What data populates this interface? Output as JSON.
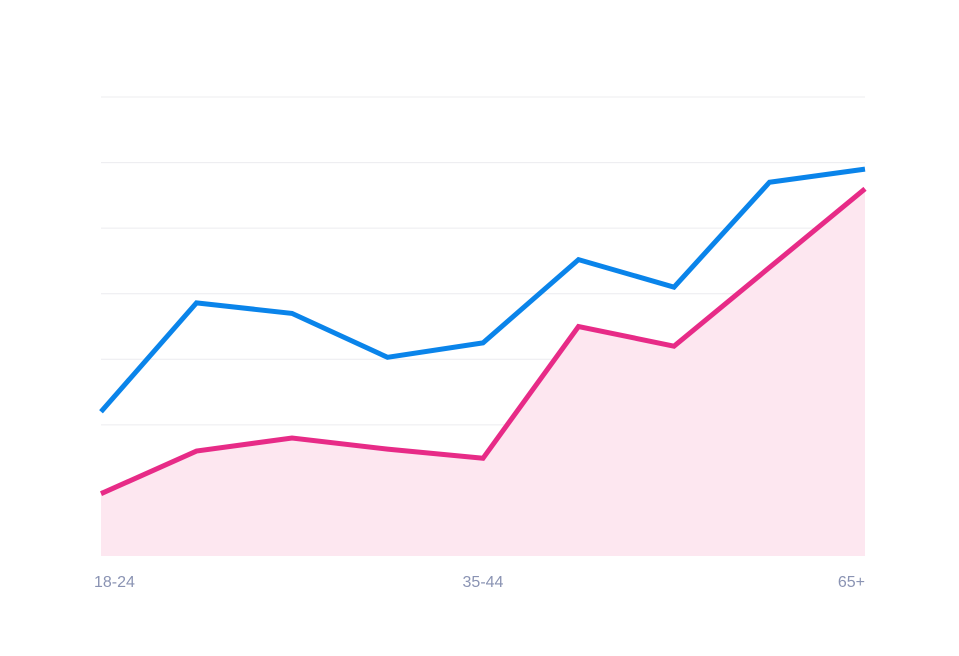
{
  "chart_data": {
    "type": "line",
    "x": [
      1,
      2,
      3,
      4,
      5,
      6,
      7,
      8,
      9
    ],
    "tick_labels": [
      {
        "x": 1,
        "label": "18-24"
      },
      {
        "x": 5,
        "label": "35-44"
      },
      {
        "x": 9,
        "label": "65+"
      }
    ],
    "series": [
      {
        "values": [
          22.0,
          38.6,
          37.0,
          30.3,
          32.5,
          45.2,
          41.0,
          57.0,
          59.0
        ],
        "color": "#0a84ea",
        "area": false
      },
      {
        "values": [
          9.5,
          16.0,
          18.0,
          16.3,
          14.9,
          35.0,
          32.0,
          44.0,
          56.0
        ],
        "color": "#e72b87",
        "area": true,
        "area_color": "#fde7f0"
      }
    ],
    "ylim": [
      0,
      70
    ],
    "gridlines": [
      10,
      20,
      30,
      40,
      50,
      60,
      70
    ],
    "grid": true,
    "legend": "none"
  }
}
